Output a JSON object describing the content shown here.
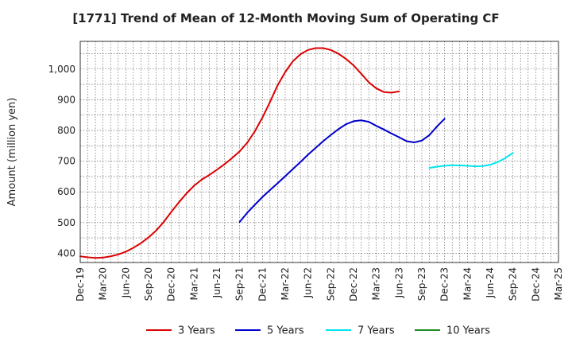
{
  "chart_data": {
    "type": "line",
    "title": "[1771]  Trend of Mean of 12-Month Moving Sum of Operating CF",
    "xlabel": "",
    "ylabel": "Amount (million yen)",
    "ylim": [
      370,
      1090
    ],
    "yticks": [
      400,
      500,
      600,
      700,
      800,
      900,
      1000
    ],
    "ytick_labels": [
      "400",
      "500",
      "600",
      "700",
      "800",
      "900",
      "1,000"
    ],
    "xticks": [
      "Dec-19",
      "Mar-20",
      "Jun-20",
      "Sep-20",
      "Dec-20",
      "Mar-21",
      "Jun-21",
      "Sep-21",
      "Dec-21",
      "Mar-22",
      "Jun-22",
      "Sep-22",
      "Dec-22",
      "Mar-23",
      "Jun-23",
      "Sep-23",
      "Dec-23",
      "Mar-24",
      "Jun-24",
      "Sep-24",
      "Dec-24",
      "Mar-25"
    ],
    "grid": true,
    "legend_position": "bottom",
    "series": [
      {
        "name": "3 Years",
        "color": "#dd0000",
        "start_index": 0,
        "values": [
          390,
          387,
          385,
          386,
          390,
          396,
          405,
          418,
          433,
          452,
          474,
          502,
          535,
          566,
          595,
          620,
          640,
          655,
          672,
          690,
          710,
          732,
          760,
          797,
          842,
          893,
          947,
          990,
          1025,
          1048,
          1062,
          1068,
          1068,
          1062,
          1050,
          1033,
          1012,
          985,
          957,
          937,
          925,
          923,
          927
        ]
      },
      {
        "name": "5 Years",
        "color": "#0000cc",
        "start_index": 21,
        "values": [
          502,
          532,
          558,
          583,
          606,
          628,
          651,
          674,
          697,
          721,
          743,
          765,
          785,
          804,
          820,
          830,
          833,
          828,
          815,
          803,
          790,
          778,
          765,
          761,
          767,
          785,
          813,
          838
        ]
      },
      {
        "name": "7 Years",
        "color": "#00e5ee",
        "start_index": 46,
        "values": [
          678,
          682,
          685,
          687,
          686,
          685,
          683,
          684,
          688,
          697,
          710,
          727
        ]
      },
      {
        "name": "10 Years",
        "color": "#228b22",
        "start_index": 0,
        "values": []
      }
    ]
  }
}
